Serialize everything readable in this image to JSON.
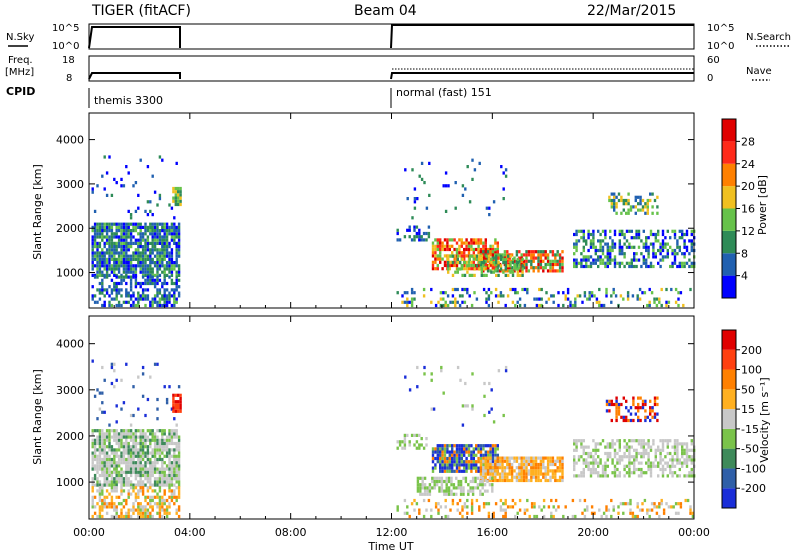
{
  "header": {
    "radar": "TIGER (fitACF)",
    "beam": "Beam 04",
    "date": "22/Mar/2015"
  },
  "strip": {
    "nsky": {
      "label": "N.Sky",
      "ticks": [
        "10^5",
        "10^0"
      ]
    },
    "nsearch": {
      "label": "N.Search",
      "ticks": [
        "10^5",
        "10^0"
      ]
    },
    "freq": {
      "label_line1": "Freq.",
      "label_line2": "[MHz]",
      "ticks": [
        "18",
        "8"
      ]
    },
    "nave": {
      "label": "Nave",
      "ticks": [
        "60",
        "0"
      ]
    },
    "cpid": {
      "label": "CPID",
      "segments": [
        "themis 3300",
        "normal (fast) 151"
      ]
    }
  },
  "chart_data": [
    {
      "type": "heatmap",
      "name": "power",
      "ylabel": "Slant Range [km]",
      "xlabel": "Time UT",
      "xlim_hours": [
        0,
        24
      ],
      "ylim_km": [
        200,
        4600
      ],
      "yticks": [
        "1000",
        "2000",
        "3000",
        "4000"
      ],
      "colorbar": {
        "label": "Power [dB]",
        "ticks": [
          "4",
          "8",
          "12",
          "16",
          "20",
          "24",
          "28"
        ],
        "colors": [
          "#0000ff",
          "#2060b0",
          "#2e8b57",
          "#66c24a",
          "#f0c020",
          "#ff8000",
          "#ff2a1a",
          "#e00000"
        ]
      },
      "data_gaps_hours": [
        [
          3.6,
          12.0
        ]
      ]
    },
    {
      "type": "heatmap",
      "name": "velocity",
      "ylabel": "Slant Range [km]",
      "xlabel": "Time UT",
      "xlim_hours": [
        0,
        24
      ],
      "ylim_km": [
        200,
        4600
      ],
      "yticks": [
        "1000",
        "2000",
        "3000",
        "4000"
      ],
      "colorbar": {
        "label": "Velocity [m s⁻¹]",
        "ticks": [
          "200",
          "100",
          "50",
          "15",
          "-15",
          "-50",
          "-100",
          "-200"
        ],
        "colors": [
          "#1a2ed8",
          "#2f5fa8",
          "#3e8a5a",
          "#7ac34a",
          "#c8c8c8",
          "#ffb020",
          "#ff8000",
          "#ff4010",
          "#e00000"
        ]
      },
      "data_gaps_hours": [
        [
          3.6,
          12.0
        ]
      ]
    }
  ],
  "xaxis": {
    "label": "Time UT",
    "ticks": [
      "00:00",
      "04:00",
      "08:00",
      "12:00",
      "16:00",
      "20:00",
      "00:00"
    ]
  }
}
